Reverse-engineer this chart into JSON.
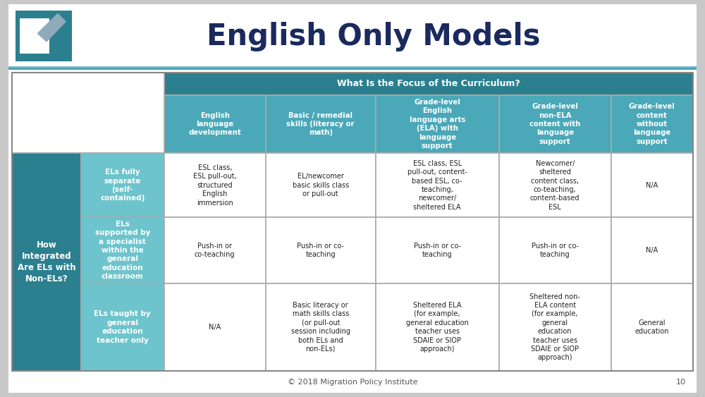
{
  "title": "English Only Models",
  "title_fontsize": 30,
  "title_color": "#1a2a5e",
  "background_color": "#c8c8c8",
  "slide_bg": "#ffffff",
  "teal_dark": "#2b7f8e",
  "teal_medium": "#4aa8b8",
  "teal_light": "#6ec4cc",
  "row_header_bg": "#2b7f8e",
  "col_header_bg": "#4aa8b8",
  "top_header_bg": "#2b7f8e",
  "cell_bg": "#ffffff",
  "border_color": "#aaaaaa",
  "header_text_color": "#ffffff",
  "cell_text_color": "#222222",
  "divider_color": "#4aa8b8",
  "footer_text": "© 2018 Migration Policy Institute",
  "page_number": "10",
  "focus_header": "What Is the Focus of the Curriculum?",
  "row_main_header": "How\nIntegrated\nAre ELs with\nNon-ELs?",
  "col_headers": [
    "English\nlanguage\ndevelopment",
    "Basic / remedial\nskills (literacy or\nmath)",
    "Grade-level\nEnglish\nlanguage arts\n(ELA) with\nlanguage\nsupport",
    "Grade-level\nnon-ELA\ncontent with\nlanguage\nsupport",
    "Grade-level\ncontent\nwithout\nlanguage\nsupport"
  ],
  "row_sub_headers": [
    "ELs fully\nseparate\n(self-\ncontained)",
    "ELs\nsupported by\na specialist\nwithin the\ngeneral\neducation\nclassroom",
    "ELs taught by\ngeneral\neducation\nteacher only"
  ],
  "cells": [
    [
      "ESL class,\nESL pull-out,\nstructured\nEnglish\nimmersion",
      "EL/newcomer\nbasic skills class\nor pull-out",
      "ESL class, ESL\npull-out, content-\nbased ESL, co-\nteaching,\nnewcomer/\nsheltered ELA",
      "Newcomer/\nsheltered\ncontent class,\nco-teaching,\ncontent-based\nESL",
      "N/A"
    ],
    [
      "Push-in or\nco-teaching",
      "Push-in or co-\nteaching",
      "Push-in or co-\nteaching",
      "Push-in or co-\nteaching",
      "N/A"
    ],
    [
      "N/A",
      "Basic literacy or\nmath skills class\n(or pull-out\nsession including\nboth ELs and\nnon-ELs)",
      "Sheltered ELA\n(for example,\ngeneral education\nteacher uses\nSDAIE or SIOP\napproach)",
      "Sheltered non-\nELA content\n(for example,\ngeneral\neducation\nteacher uses\nSDAIE or SIOP\napproach)",
      "General\neducation"
    ]
  ],
  "logo_teal": "#2b7f8e",
  "logo_gray": "#8eaabb"
}
